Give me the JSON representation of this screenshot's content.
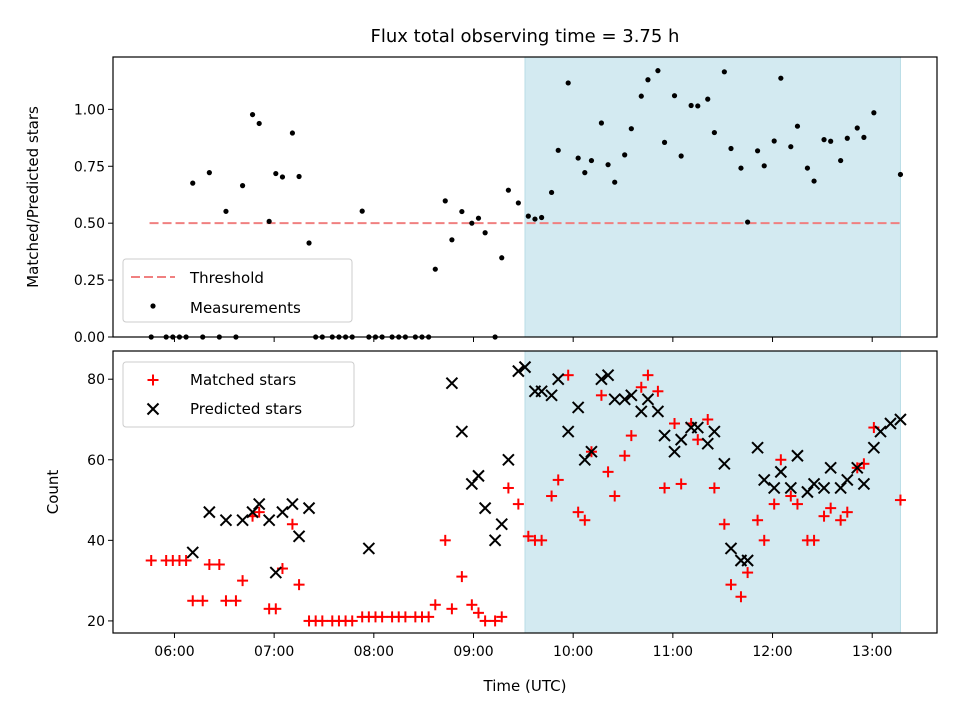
{
  "title": "Flux total observing time = 3.75 h",
  "colors": {
    "shade": "#d3eaf1",
    "threshold": "#f08080",
    "measurement": "#000000",
    "matched": "#ff0000",
    "predicted": "#000000"
  },
  "chart_data": [
    {
      "type": "scatter",
      "panel": "top",
      "xlabel": "",
      "ylabel": "Matched/Predicted stars",
      "xlim": [
        "05:23",
        "13:39"
      ],
      "ylim": [
        0,
        1.23
      ],
      "yticks": [
        "0.00",
        "0.25",
        "0.50",
        "0.75",
        "1.00"
      ],
      "shaded_x": [
        "09:31",
        "13:17"
      ],
      "threshold": {
        "name": "Threshold",
        "y": 0.5,
        "x": [
          "05:45",
          "13:17"
        ]
      },
      "legend": {
        "placement": "lower-left",
        "entries": [
          "Threshold",
          "Measurements"
        ]
      },
      "series": [
        {
          "name": "Measurements",
          "points": [
            [
              "05:46",
              0
            ],
            [
              "05:55",
              0
            ],
            [
              "05:59",
              0
            ],
            [
              "06:03",
              0
            ],
            [
              "06:07",
              0
            ],
            [
              "06:11",
              0.676
            ],
            [
              "06:17",
              0
            ],
            [
              "06:21",
              0.722
            ],
            [
              "06:27",
              0
            ],
            [
              "06:31",
              0.552
            ],
            [
              "06:37",
              0
            ],
            [
              "06:41",
              0.665
            ],
            [
              "06:47",
              0.977
            ],
            [
              "06:51",
              0.938
            ],
            [
              "06:57",
              0.508
            ],
            [
              "07:01",
              0.718
            ],
            [
              "07:05",
              0.703
            ],
            [
              "07:11",
              0.896
            ],
            [
              "07:15",
              0.705
            ],
            [
              "07:21",
              0.413
            ],
            [
              "07:25",
              0
            ],
            [
              "07:29",
              0
            ],
            [
              "07:35",
              0
            ],
            [
              "07:39",
              0
            ],
            [
              "07:43",
              0
            ],
            [
              "07:47",
              0
            ],
            [
              "07:53",
              0.553
            ],
            [
              "07:57",
              0
            ],
            [
              "08:01",
              0
            ],
            [
              "08:05",
              0
            ],
            [
              "08:11",
              0
            ],
            [
              "08:15",
              0
            ],
            [
              "08:19",
              0
            ],
            [
              "08:25",
              0
            ],
            [
              "08:29",
              0
            ],
            [
              "08:33",
              0
            ],
            [
              "08:37",
              0.298
            ],
            [
              "08:43",
              0.598
            ],
            [
              "08:47",
              0.427
            ],
            [
              "08:53",
              0.551
            ],
            [
              "08:59",
              0.5
            ],
            [
              "09:03",
              0.522
            ],
            [
              "09:07",
              0.458
            ],
            [
              "09:13",
              0
            ],
            [
              "09:17",
              0.348
            ],
            [
              "09:21",
              0.645
            ],
            [
              "09:27",
              0.589
            ],
            [
              "09:33",
              0.531
            ],
            [
              "09:37",
              0.518
            ],
            [
              "09:41",
              0.525
            ],
            [
              "09:47",
              0.635
            ],
            [
              "09:51",
              0.82
            ],
            [
              "09:57",
              1.116
            ],
            [
              "10:03",
              0.786
            ],
            [
              "10:07",
              0.722
            ],
            [
              "10:11",
              0.775
            ],
            [
              "10:17",
              0.94
            ],
            [
              "10:21",
              0.757
            ],
            [
              "10:25",
              0.68
            ],
            [
              "10:31",
              0.8
            ],
            [
              "10:35",
              0.915
            ],
            [
              "10:41",
              1.058
            ],
            [
              "10:45",
              1.13
            ],
            [
              "10:51",
              1.17
            ],
            [
              "10:55",
              0.855
            ],
            [
              "11:01",
              1.06
            ],
            [
              "11:05",
              0.795
            ],
            [
              "11:11",
              1.017
            ],
            [
              "11:15",
              1.015
            ],
            [
              "11:21",
              1.045
            ],
            [
              "11:25",
              0.898
            ],
            [
              "11:31",
              1.165
            ],
            [
              "11:35",
              0.828
            ],
            [
              "11:41",
              0.742
            ],
            [
              "11:45",
              0.505
            ],
            [
              "11:51",
              0.818
            ],
            [
              "11:55",
              0.752
            ],
            [
              "12:01",
              0.861
            ],
            [
              "12:05",
              1.137
            ],
            [
              "12:11",
              0.836
            ],
            [
              "12:15",
              0.926
            ],
            [
              "12:21",
              0.742
            ],
            [
              "12:25",
              0.685
            ],
            [
              "12:31",
              0.867
            ],
            [
              "12:35",
              0.86
            ],
            [
              "12:41",
              0.775
            ],
            [
              "12:45",
              0.873
            ],
            [
              "12:51",
              0.918
            ],
            [
              "12:55",
              0.877
            ],
            [
              "13:01",
              0.985
            ],
            [
              "13:17",
              0.714
            ]
          ]
        }
      ]
    },
    {
      "type": "scatter",
      "panel": "bottom",
      "xlabel": "Time (UTC)",
      "ylabel": "Count",
      "xlim": [
        "05:23",
        "13:39"
      ],
      "ylim": [
        17,
        87
      ],
      "xticks": [
        "06:00",
        "07:00",
        "08:00",
        "09:00",
        "10:00",
        "11:00",
        "12:00",
        "13:00"
      ],
      "yticks": [
        "20",
        "40",
        "60",
        "80"
      ],
      "shaded_x": [
        "09:31",
        "13:17"
      ],
      "legend": {
        "placement": "upper-left",
        "entries": [
          "Matched stars",
          "Predicted stars"
        ]
      },
      "series": [
        {
          "name": "Matched stars",
          "marker": "plus",
          "points": [
            [
              "05:46",
              35
            ],
            [
              "05:55",
              35
            ],
            [
              "05:59",
              35
            ],
            [
              "06:03",
              35
            ],
            [
              "06:07",
              35
            ],
            [
              "06:11",
              25
            ],
            [
              "06:17",
              25
            ],
            [
              "06:21",
              34
            ],
            [
              "06:27",
              34
            ],
            [
              "06:31",
              25
            ],
            [
              "06:37",
              25
            ],
            [
              "06:41",
              30
            ],
            [
              "06:47",
              46
            ],
            [
              "06:51",
              47
            ],
            [
              "06:57",
              23
            ],
            [
              "07:01",
              23
            ],
            [
              "07:05",
              33
            ],
            [
              "07:11",
              44
            ],
            [
              "07:15",
              29
            ],
            [
              "07:21",
              20
            ],
            [
              "07:25",
              20
            ],
            [
              "07:29",
              20
            ],
            [
              "07:35",
              20
            ],
            [
              "07:39",
              20
            ],
            [
              "07:43",
              20
            ],
            [
              "07:47",
              20
            ],
            [
              "07:53",
              21
            ],
            [
              "07:57",
              21
            ],
            [
              "08:01",
              21
            ],
            [
              "08:05",
              21
            ],
            [
              "08:11",
              21
            ],
            [
              "08:15",
              21
            ],
            [
              "08:19",
              21
            ],
            [
              "08:25",
              21
            ],
            [
              "08:29",
              21
            ],
            [
              "08:33",
              21
            ],
            [
              "08:37",
              24
            ],
            [
              "08:43",
              40
            ],
            [
              "08:47",
              23
            ],
            [
              "08:53",
              31
            ],
            [
              "08:59",
              24
            ],
            [
              "09:03",
              22
            ],
            [
              "09:07",
              20
            ],
            [
              "09:13",
              20
            ],
            [
              "09:17",
              21
            ],
            [
              "09:21",
              53
            ],
            [
              "09:27",
              49
            ],
            [
              "09:33",
              41
            ],
            [
              "09:37",
              40
            ],
            [
              "09:41",
              40
            ],
            [
              "09:47",
              51
            ],
            [
              "09:51",
              55
            ],
            [
              "09:57",
              81
            ],
            [
              "10:03",
              47
            ],
            [
              "10:07",
              45
            ],
            [
              "10:11",
              62
            ],
            [
              "10:17",
              76
            ],
            [
              "10:21",
              57
            ],
            [
              "10:25",
              51
            ],
            [
              "10:31",
              61
            ],
            [
              "10:35",
              66
            ],
            [
              "10:41",
              78
            ],
            [
              "10:45",
              81
            ],
            [
              "10:51",
              77
            ],
            [
              "10:55",
              53
            ],
            [
              "11:01",
              69
            ],
            [
              "11:05",
              54
            ],
            [
              "11:11",
              69
            ],
            [
              "11:15",
              65
            ],
            [
              "11:21",
              70
            ],
            [
              "11:25",
              53
            ],
            [
              "11:31",
              44
            ],
            [
              "11:35",
              29
            ],
            [
              "11:41",
              26
            ],
            [
              "11:45",
              32
            ],
            [
              "11:51",
              45
            ],
            [
              "11:55",
              40
            ],
            [
              "12:01",
              49
            ],
            [
              "12:05",
              60
            ],
            [
              "12:11",
              51
            ],
            [
              "12:15",
              49
            ],
            [
              "12:21",
              40
            ],
            [
              "12:25",
              40
            ],
            [
              "12:31",
              46
            ],
            [
              "12:35",
              48
            ],
            [
              "12:41",
              45
            ],
            [
              "12:45",
              47
            ],
            [
              "12:51",
              58
            ],
            [
              "12:55",
              59
            ],
            [
              "13:01",
              68
            ],
            [
              "13:17",
              50
            ]
          ]
        },
        {
          "name": "Predicted stars",
          "marker": "x",
          "points": [
            [
              "06:11",
              37
            ],
            [
              "06:21",
              47
            ],
            [
              "06:31",
              45
            ],
            [
              "06:41",
              45
            ],
            [
              "06:47",
              47
            ],
            [
              "06:51",
              49
            ],
            [
              "06:57",
              45
            ],
            [
              "07:01",
              32
            ],
            [
              "07:05",
              47
            ],
            [
              "07:11",
              49
            ],
            [
              "07:15",
              41
            ],
            [
              "07:21",
              48
            ],
            [
              "07:57",
              38
            ],
            [
              "08:47",
              79
            ],
            [
              "08:53",
              67
            ],
            [
              "08:59",
              54
            ],
            [
              "09:03",
              56
            ],
            [
              "09:07",
              48
            ],
            [
              "09:13",
              40
            ],
            [
              "09:17",
              44
            ],
            [
              "09:21",
              60
            ],
            [
              "09:27",
              82
            ],
            [
              "09:31",
              83
            ],
            [
              "09:37",
              77
            ],
            [
              "09:41",
              77
            ],
            [
              "09:47",
              76
            ],
            [
              "09:51",
              80
            ],
            [
              "09:57",
              67
            ],
            [
              "10:03",
              73
            ],
            [
              "10:07",
              60
            ],
            [
              "10:11",
              62
            ],
            [
              "10:17",
              80
            ],
            [
              "10:21",
              81
            ],
            [
              "10:25",
              75
            ],
            [
              "10:31",
              75
            ],
            [
              "10:35",
              76
            ],
            [
              "10:41",
              72
            ],
            [
              "10:45",
              75
            ],
            [
              "10:51",
              72
            ],
            [
              "10:55",
              66
            ],
            [
              "11:01",
              62
            ],
            [
              "11:05",
              65
            ],
            [
              "11:11",
              68
            ],
            [
              "11:15",
              68
            ],
            [
              "11:21",
              64
            ],
            [
              "11:25",
              67
            ],
            [
              "11:31",
              59
            ],
            [
              "11:35",
              38
            ],
            [
              "11:41",
              35
            ],
            [
              "11:45",
              35
            ],
            [
              "11:51",
              63
            ],
            [
              "11:55",
              55
            ],
            [
              "12:01",
              53
            ],
            [
              "12:05",
              57
            ],
            [
              "12:11",
              53
            ],
            [
              "12:15",
              61
            ],
            [
              "12:21",
              52
            ],
            [
              "12:25",
              54
            ],
            [
              "12:31",
              53
            ],
            [
              "12:35",
              58
            ],
            [
              "12:41",
              53
            ],
            [
              "12:45",
              55
            ],
            [
              "12:51",
              58
            ],
            [
              "12:55",
              54
            ],
            [
              "13:01",
              63
            ],
            [
              "13:05",
              67
            ],
            [
              "13:11",
              69
            ],
            [
              "13:17",
              70
            ]
          ]
        }
      ]
    }
  ]
}
